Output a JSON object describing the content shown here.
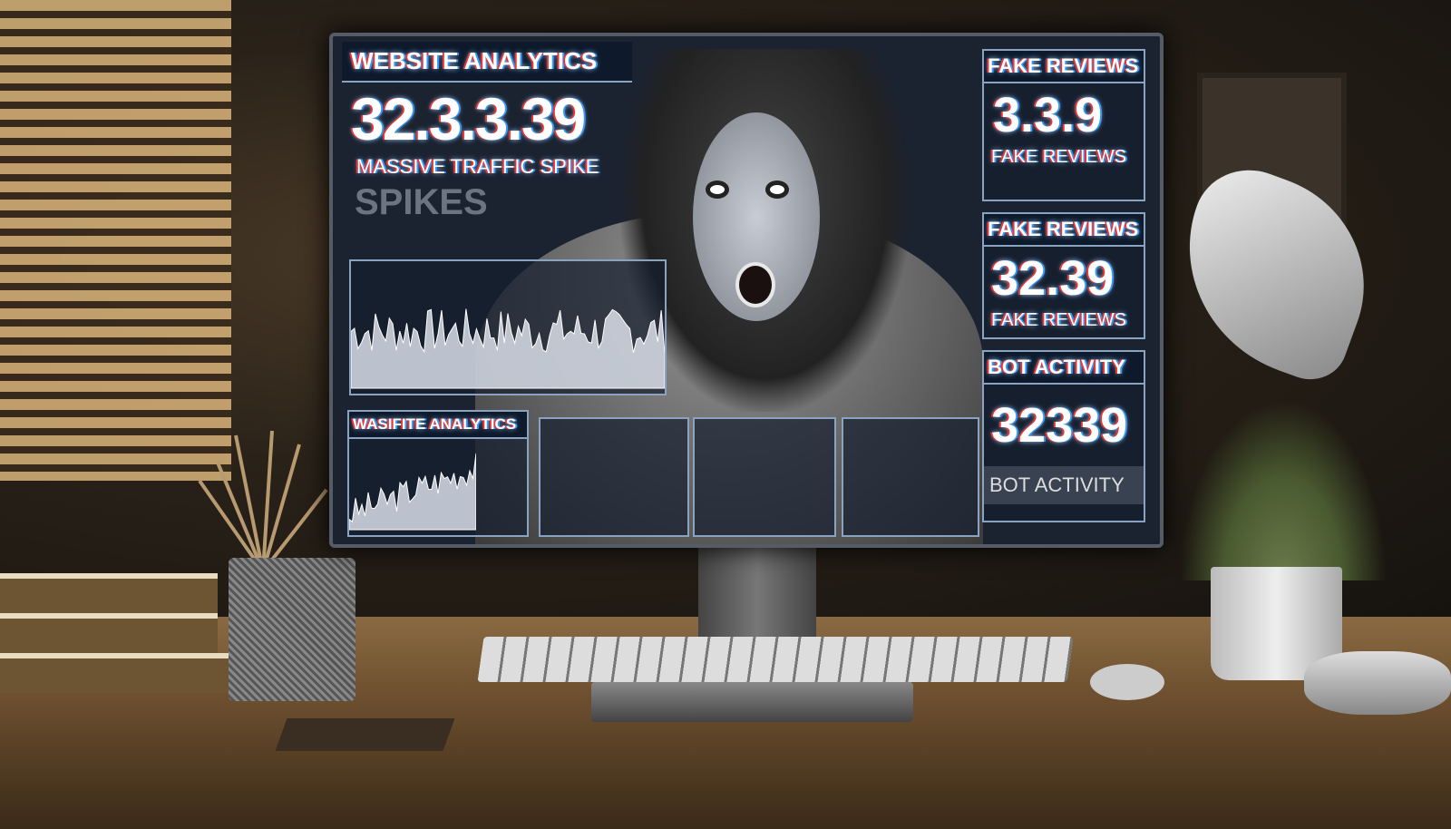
{
  "left_panel": {
    "title": "WEBSITE ANALYTICS",
    "value": "32.3.3.39",
    "subtitle": "MASSIVE TRAFFIC SPIKE",
    "faded_label": "SPIKES"
  },
  "bottom_panel": {
    "title": "WASIFITE ANALYTICS"
  },
  "right_panels": [
    {
      "title": "FAKE REVIEWS",
      "value": "3.3.9",
      "label": "FAKE REVIEWS"
    },
    {
      "title": "FAKE REVIEWS",
      "value": "32.39",
      "label": "FAKE REVIEWS"
    },
    {
      "title": "BOT ACTIVITY",
      "value": "32339",
      "label": "BOT ACTIVITY"
    }
  ],
  "colors": {
    "screen": "#1b2230",
    "panel_border": "#8aa3c0",
    "alert_red": "#d0304a"
  }
}
